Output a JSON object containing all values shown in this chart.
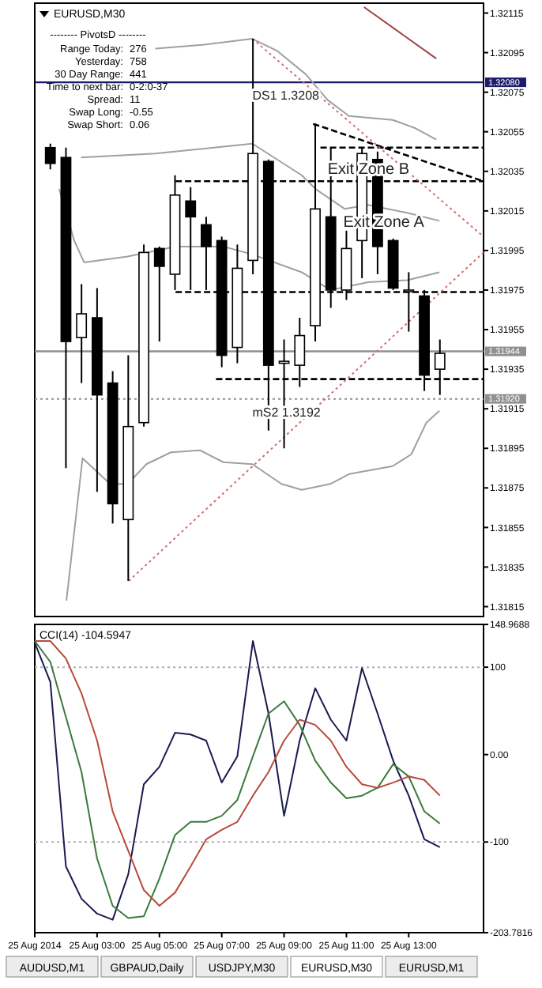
{
  "chart_data": [
    {
      "type": "candlestick",
      "title": "EURUSD,M30",
      "xlim": [
        "2014-08-25T01:00",
        "2014-08-25T15:24"
      ],
      "ylim": [
        1.3181,
        1.3212
      ],
      "yticks": [
        1.32115,
        1.32095,
        1.32075,
        1.32055,
        1.32035,
        1.32015,
        1.31995,
        1.31975,
        1.31955,
        1.31935,
        1.31915,
        1.31895,
        1.31875,
        1.31855,
        1.31835,
        1.31815
      ],
      "tick_labels": "y",
      "x": [
        "2014-08-25T01:30",
        "2014-08-25T02:00",
        "2014-08-25T02:30",
        "2014-08-25T03:00",
        "2014-08-25T03:30",
        "2014-08-25T04:00",
        "2014-08-25T04:30",
        "2014-08-25T05:00",
        "2014-08-25T05:30",
        "2014-08-25T06:00",
        "2014-08-25T06:30",
        "2014-08-25T07:00",
        "2014-08-25T07:30",
        "2014-08-25T08:00",
        "2014-08-25T08:30",
        "2014-08-25T09:00",
        "2014-08-25T09:30",
        "2014-08-25T10:00",
        "2014-08-25T10:30",
        "2014-08-25T11:00",
        "2014-08-25T11:30",
        "2014-08-25T12:00",
        "2014-08-25T12:30",
        "2014-08-25T13:00",
        "2014-08-25T13:30",
        "2014-08-25T14:00"
      ],
      "ohlc": [
        [
          1.32047,
          1.32049,
          1.32036,
          1.32039
        ],
        [
          1.32042,
          1.32047,
          1.31885,
          1.31949
        ],
        [
          1.31951,
          1.31978,
          1.31928,
          1.31963
        ],
        [
          1.31961,
          1.31976,
          1.31873,
          1.31922
        ],
        [
          1.31928,
          1.31934,
          1.31857,
          1.31867
        ],
        [
          1.31859,
          1.31942,
          1.31828,
          1.31906
        ],
        [
          1.31908,
          1.31998,
          1.31906,
          1.31994
        ],
        [
          1.31996,
          1.31997,
          1.31949,
          1.31987
        ],
        [
          1.31983,
          1.32033,
          1.31975,
          1.32023
        ],
        [
          1.3202,
          1.32027,
          1.31975,
          1.32012
        ],
        [
          1.32008,
          1.32012,
          1.31975,
          1.31997
        ],
        [
          1.32,
          1.32002,
          1.31936,
          1.31942
        ],
        [
          1.31946,
          1.31998,
          1.31938,
          1.31986
        ],
        [
          1.3199,
          1.32102,
          1.31983,
          1.32044
        ],
        [
          1.3204,
          1.32041,
          1.31904,
          1.31937
        ],
        [
          1.31938,
          1.3195,
          1.31895,
          1.31939
        ],
        [
          1.31937,
          1.31961,
          1.31926,
          1.31952
        ],
        [
          1.31957,
          1.32059,
          1.31949,
          1.32016
        ],
        [
          1.32012,
          1.32047,
          1.31966,
          1.31975
        ],
        [
          1.31975,
          1.32005,
          1.3197,
          1.31996
        ],
        [
          1.32,
          1.32047,
          1.31981,
          1.32044
        ],
        [
          1.32041,
          1.32045,
          1.31983,
          1.31997
        ],
        [
          1.32,
          1.32001,
          1.31975,
          1.31976
        ],
        [
          1.31975,
          1.31984,
          1.31954,
          1.31975
        ],
        [
          1.31972,
          1.31975,
          1.31924,
          1.31932
        ],
        [
          1.31935,
          1.3195,
          1.31922,
          1.31943
        ]
      ],
      "series": [
        {
          "type": "line",
          "color": "#a0a0a0",
          "line_style": "solid",
          "x": [
            "2014-08-25T04:52",
            "2014-08-25T06:26",
            "2014-08-25T07:59",
            "2014-08-25T08:46",
            "2014-08-25T09:42",
            "2014-08-25T10:24",
            "2014-08-25T11:05",
            "2014-08-25T12:29",
            "2014-08-25T13:11",
            "2014-08-25T13:53"
          ],
          "values": [
            1.32097,
            1.32099,
            1.32102,
            1.32096,
            1.32084,
            1.32071,
            1.32063,
            1.32061,
            1.32057,
            1.32051
          ]
        },
        {
          "type": "line",
          "color": "#a0a0a0",
          "line_style": "solid",
          "x": [
            "2014-08-25T02:29",
            "2014-08-25T04:52",
            "2014-08-25T07:59",
            "2014-08-25T09:34",
            "2014-08-25T10:01",
            "2014-08-25T10:57",
            "2014-08-25T11:42",
            "2014-08-25T12:57",
            "2014-08-25T13:59"
          ],
          "values": [
            1.32042,
            1.32044,
            1.32049,
            1.32033,
            1.32026,
            1.32016,
            1.32018,
            1.32014,
            1.3201
          ]
        },
        {
          "type": "line",
          "color": "#a0a0a0",
          "line_style": "solid",
          "x": [
            "2014-08-25T01:47",
            "2014-08-25T02:16",
            "2014-08-25T02:35",
            "2014-08-25T03:59",
            "2014-08-25T05:31",
            "2014-08-25T07:03",
            "2014-08-25T07:59",
            "2014-08-25T09:34",
            "2014-08-25T10:29",
            "2014-08-25T11:42",
            "2014-08-25T12:57",
            "2014-08-25T13:59"
          ],
          "values": [
            1.32026,
            1.32,
            1.31989,
            1.31992,
            1.31997,
            1.31997,
            1.31993,
            1.31984,
            1.31975,
            1.31979,
            1.3198,
            1.31984
          ]
        },
        {
          "type": "line",
          "color": "#a0a0a0",
          "line_style": "solid",
          "x": [
            "2014-08-25T02:01",
            "2014-08-25T02:32",
            "2014-08-25T03:25",
            "2014-08-25T03:59",
            "2014-08-25T04:35",
            "2014-08-25T05:22",
            "2014-08-25T06:18",
            "2014-08-25T07:03",
            "2014-08-25T07:59",
            "2014-08-25T08:55",
            "2014-08-25T09:34",
            "2014-08-25T10:29",
            "2014-08-25T11:05",
            "2014-08-25T12:29",
            "2014-08-25T13:05",
            "2014-08-25T13:34",
            "2014-08-25T13:59"
          ],
          "values": [
            1.31818,
            1.3189,
            1.31877,
            1.31877,
            1.31887,
            1.31893,
            1.31894,
            1.31888,
            1.31887,
            1.31877,
            1.31874,
            1.31877,
            1.31882,
            1.31886,
            1.31892,
            1.31908,
            1.31914
          ]
        },
        {
          "type": "line",
          "color": "#000000",
          "line_style": "dashed",
          "x": [
            "2014-08-25T10:10",
            "2014-08-25T15:24"
          ],
          "values": [
            1.32047,
            1.32047
          ]
        },
        {
          "type": "line",
          "color": "#000000",
          "line_style": "dashed",
          "x": [
            "2014-08-25T05:31",
            "2014-08-25T15:24"
          ],
          "values": [
            1.3203,
            1.3203
          ]
        },
        {
          "type": "line",
          "color": "#000000",
          "line_style": "dashed",
          "x": [
            "2014-08-25T09:56",
            "2014-08-25T15:24"
          ],
          "values": [
            1.32059,
            1.3203
          ]
        },
        {
          "type": "line",
          "color": "#000000",
          "line_style": "dashed",
          "x": [
            "2014-08-25T05:31",
            "2014-08-25T15:24"
          ],
          "values": [
            1.31974,
            1.31974
          ]
        },
        {
          "type": "line",
          "color": "#000000",
          "line_style": "dashed",
          "x": [
            "2014-08-25T06:49",
            "2014-08-25T15:24"
          ],
          "values": [
            1.3193,
            1.3193
          ]
        },
        {
          "type": "line",
          "color": "#d07070",
          "line_style": "dotted",
          "x": [
            "2014-08-25T04:01",
            "2014-08-25T15:24"
          ],
          "values": [
            1.31828,
            1.31994
          ]
        },
        {
          "type": "line",
          "color": "#d07070",
          "line_style": "dotted",
          "x": [
            "2014-08-25T07:59",
            "2014-08-25T15:24"
          ],
          "values": [
            1.32102,
            1.32002
          ]
        },
        {
          "type": "line",
          "color": "#a04040",
          "line_style": "solid",
          "x": [
            "2014-08-25T11:34",
            "2014-08-25T13:53"
          ],
          "values": [
            1.32118,
            1.32092
          ]
        }
      ],
      "ref_lines": [
        {
          "axis": "y",
          "value": 1.3208,
          "label": "1.32080",
          "color": "#1c1c6c",
          "line_style": "solid"
        },
        {
          "axis": "y",
          "value": 1.31944,
          "label": "1.31944",
          "color": "#909090",
          "line_style": "solid"
        },
        {
          "axis": "y",
          "value": 1.3192,
          "label": "1.31920",
          "color": "#909090",
          "line_style": "dotted"
        }
      ],
      "annotations": [
        "-------- PivotsD --------",
        "Range  Today:",
        "276",
        "Yesterday:",
        "758",
        "30 Day Range:",
        "441",
        "Time to next bar:",
        "0-2:0-37",
        "Spread:",
        "11",
        "Swap  Long:",
        "-0.55",
        "Swap  Short:",
        "0.06",
        {
          "text": "DS1  1.3208",
          "x": "2014-08-25T07:59",
          "y": 1.3208
        },
        {
          "text": "mS2  1.3192",
          "x": "2014-08-25T07:59",
          "y": 1.3192
        },
        {
          "text": "Exit Zone B",
          "x": "2014-08-25T10:24",
          "y": 1.32037
        },
        {
          "text": "Exit Zone A",
          "x": "2014-08-25T10:54",
          "y": 1.3201
        }
      ]
    },
    {
      "type": "line",
      "title": "CCI(14) -104.5947",
      "xlim": [
        "2014-08-25T01:00",
        "2014-08-25T15:24"
      ],
      "xticks": [
        {
          "value": "2014-08-25T01:00",
          "label": "25 Aug 2014"
        },
        {
          "value": "2014-08-25T03:00",
          "label": "25 Aug 03:00"
        },
        {
          "value": "2014-08-25T05:00",
          "label": "25 Aug 05:00"
        },
        {
          "value": "2014-08-25T07:00",
          "label": "25 Aug 07:00"
        },
        {
          "value": "2014-08-25T09:00",
          "label": "25 Aug 09:00"
        },
        {
          "value": "2014-08-25T11:00",
          "label": "25 Aug 11:00"
        },
        {
          "value": "2014-08-25T13:00",
          "label": "25 Aug 13:00"
        }
      ],
      "ylim": [
        -203.7816,
        148.9688
      ],
      "yticks": [
        148.9688,
        100,
        {
          "value": 0,
          "label": "0.00"
        },
        -100,
        -203.7816
      ],
      "x": [
        "2014-08-25T01:00",
        "2014-08-25T01:30",
        "2014-08-25T02:00",
        "2014-08-25T02:30",
        "2014-08-25T03:00",
        "2014-08-25T03:30",
        "2014-08-25T04:00",
        "2014-08-25T04:30",
        "2014-08-25T05:00",
        "2014-08-25T05:30",
        "2014-08-25T06:00",
        "2014-08-25T06:30",
        "2014-08-25T07:00",
        "2014-08-25T07:30",
        "2014-08-25T08:00",
        "2014-08-25T08:30",
        "2014-08-25T09:00",
        "2014-08-25T09:30",
        "2014-08-25T10:00",
        "2014-08-25T10:30",
        "2014-08-25T11:00",
        "2014-08-25T11:30",
        "2014-08-25T12:00",
        "2014-08-25T12:30",
        "2014-08-25T13:00",
        "2014-08-25T13:30",
        "2014-08-25T14:00"
      ],
      "series": [
        {
          "color": "#1a1a50",
          "values": [
            128,
            83,
            -128,
            -165,
            -182,
            -189,
            -137,
            -34,
            -14,
            25,
            23,
            16,
            -32,
            -2,
            130,
            47,
            -70,
            16,
            76,
            40,
            16,
            99,
            47,
            -7,
            -47,
            -97,
            -106
          ]
        },
        {
          "color": "#3a7a3a",
          "values": [
            130,
            106,
            43,
            -20,
            -119,
            -173,
            -187,
            -185,
            -142,
            -92,
            -77,
            -77,
            -70,
            -52,
            -2,
            47,
            61,
            34,
            -7,
            -32,
            -50,
            -47,
            -38,
            -11,
            -25,
            -65,
            -79
          ]
        },
        {
          "color": "#b84a3a",
          "values": [
            130,
            130,
            110,
            70,
            16,
            -65,
            -110,
            -155,
            -173,
            -158,
            -128,
            -97,
            -86,
            -77,
            -47,
            -20,
            16,
            40,
            34,
            16,
            -14,
            -34,
            -38,
            -32,
            -25,
            -29,
            -47
          ]
        }
      ],
      "ref_lines": [
        {
          "axis": "y",
          "value": 100,
          "color": "#b0b0b0",
          "line_style": "dotted"
        },
        {
          "axis": "y",
          "value": -100,
          "color": "#b0b0b0",
          "line_style": "dotted"
        }
      ]
    },
    {
      "type": "other",
      "annotations": [
        "AUDUSD,M1",
        "GBPAUD,Daily",
        "USDJPY,M30",
        "EURUSD,M30",
        "EURUSD,M1"
      ]
    }
  ]
}
